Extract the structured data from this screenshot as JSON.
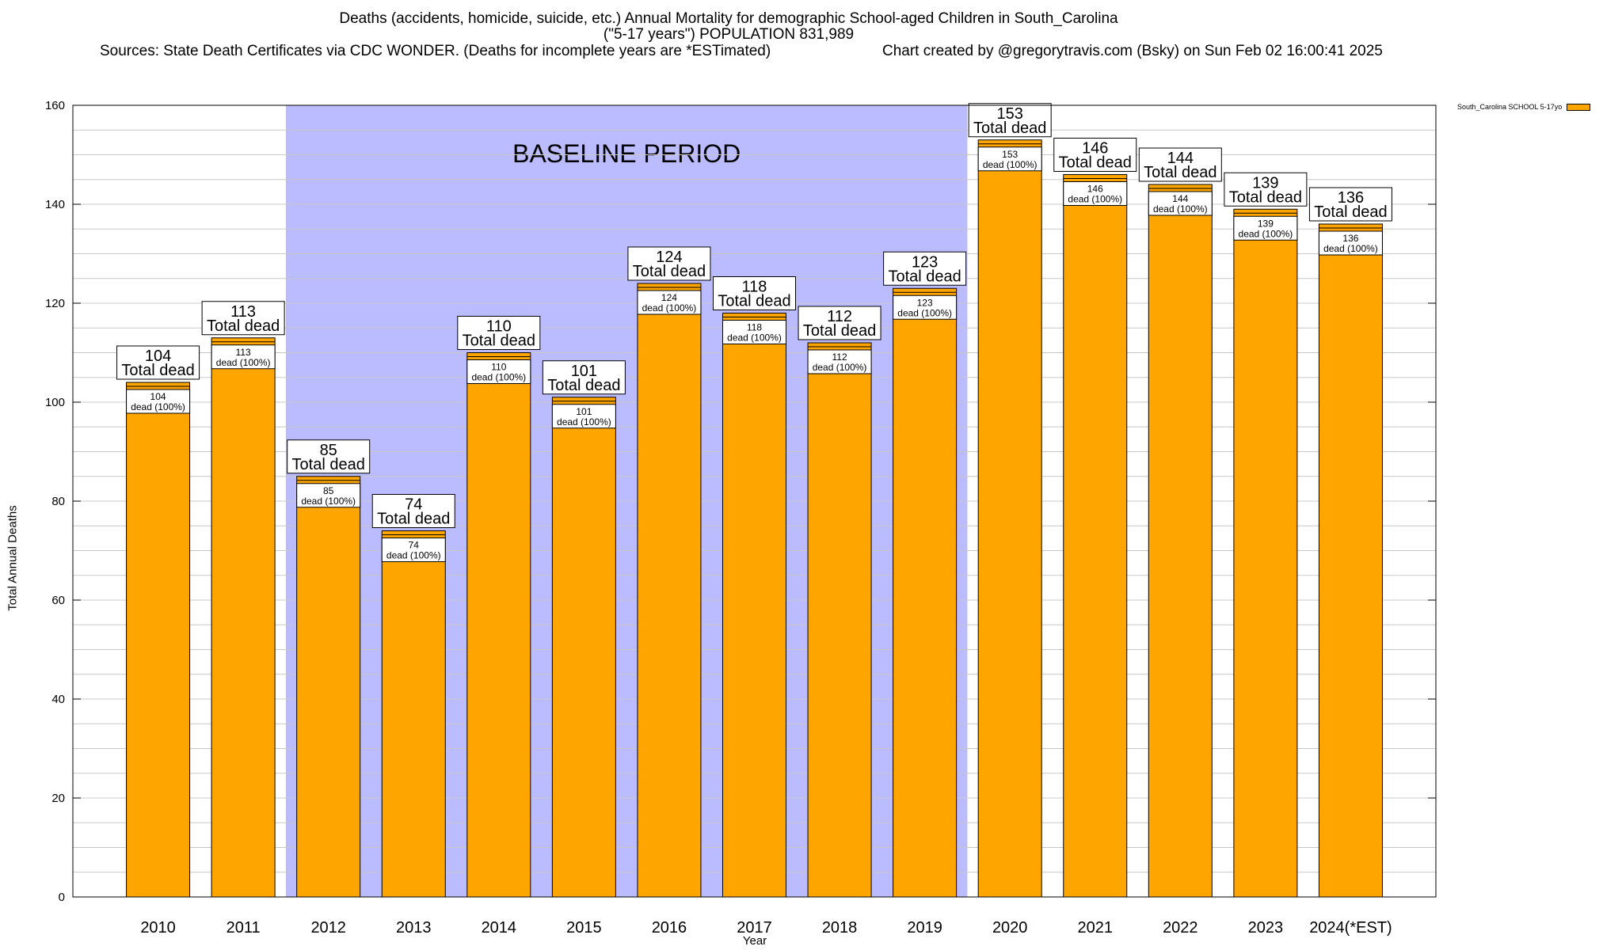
{
  "header": {
    "title": "Deaths (accidents, homicide, suicide, etc.) Annual Mortality for demographic School-aged Children in South_Carolina",
    "subtitle": "(\"5-17 years\") POPULATION 831,989",
    "sources": "Sources: State Death Certificates via CDC WONDER. (Deaths for incomplete years are *ESTimated)",
    "credit": "Chart created by @gregorytravis.com (Bsky) on Sun Feb 02 16:00:41 2025"
  },
  "legend": {
    "label": "South_Carolina SCHOOL 5-17yo"
  },
  "colors": {
    "bar": "#ffa500",
    "baseline_band": "#bbbbff",
    "grid": "#c8c8c8",
    "axis": "#000000"
  },
  "chart_data": {
    "type": "bar",
    "xlabel": "Year",
    "ylabel": "Total Annual Deaths",
    "ylim": [
      0,
      160
    ],
    "yticks": [
      0,
      20,
      40,
      60,
      80,
      100,
      120,
      140,
      160
    ],
    "grid": true,
    "legend_position": "right of plot, top",
    "categories": [
      "2010",
      "2011",
      "2012",
      "2013",
      "2014",
      "2015",
      "2016",
      "2017",
      "2018",
      "2019",
      "2020",
      "2021",
      "2022",
      "2023",
      "2024(*EST)"
    ],
    "series": [
      {
        "name": "South_Carolina SCHOOL 5-17yo",
        "values": [
          104,
          113,
          85,
          74,
          110,
          101,
          124,
          118,
          112,
          123,
          153,
          146,
          144,
          139,
          136
        ]
      }
    ],
    "total_label": "Total dead",
    "segment_label": "dead (100%)",
    "baseline": {
      "label": "BASELINE PERIOD",
      "start": "2012",
      "end": "2019"
    }
  }
}
